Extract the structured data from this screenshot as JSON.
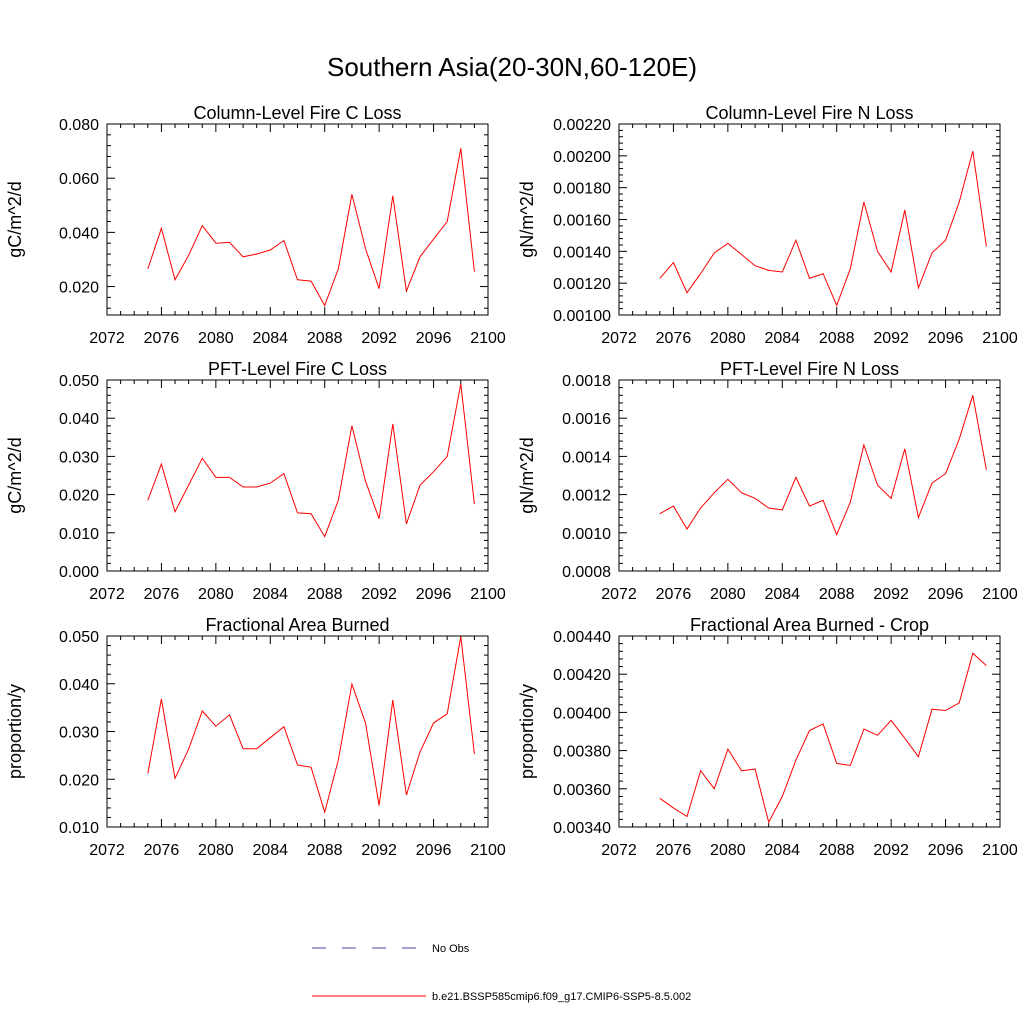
{
  "figure": {
    "title": "Southern Asia(20-30N,60-120E)"
  },
  "legend": {
    "entries": [
      {
        "label": "No Obs",
        "color": "#4a4aa0",
        "dash": "dashed"
      },
      {
        "label": "b.e21.BSSP585cmip6.f09_g17.CMIP6-SSP5-8.5.002",
        "color": "#ff0000",
        "dash": "solid"
      }
    ]
  },
  "chart_data": [
    {
      "type": "line",
      "title": "Column-Level Fire C Loss",
      "ylabel": "gC/m^2/d",
      "xlim": [
        2072,
        2100
      ],
      "ylim": [
        0.0095,
        0.08
      ],
      "yticks": [
        0.02,
        0.04,
        0.06,
        0.08
      ],
      "ytick_labels": [
        "0.020",
        "0.040",
        "0.060",
        "0.080"
      ],
      "xticks": [
        2072,
        2076,
        2080,
        2084,
        2088,
        2092,
        2096,
        2100
      ],
      "series": [
        {
          "color": "#ff0000",
          "x": [
            2075,
            2076,
            2077,
            2078,
            2079,
            2080,
            2081,
            2082,
            2083,
            2084,
            2085,
            2086,
            2087,
            2088,
            2089,
            2090,
            2091,
            2092,
            2093,
            2094,
            2095,
            2096,
            2097,
            2098,
            2099
          ],
          "y": [
            0.0265,
            0.0415,
            0.0225,
            0.0315,
            0.0425,
            0.036,
            0.0363,
            0.031,
            0.032,
            0.0335,
            0.037,
            0.0225,
            0.022,
            0.013,
            0.0265,
            0.054,
            0.034,
            0.0192,
            0.0535,
            0.0183,
            0.031,
            0.0375,
            0.044,
            0.071,
            0.0255
          ]
        }
      ]
    },
    {
      "type": "line",
      "title": "Column-Level Fire N Loss",
      "ylabel": "gN/m^2/d",
      "xlim": [
        2072,
        2100
      ],
      "ylim": [
        0.001,
        0.0022
      ],
      "yticks": [
        0.001,
        0.0012,
        0.0014,
        0.0016,
        0.0018,
        0.002,
        0.0022
      ],
      "ytick_labels": [
        "0.00100",
        "0.00120",
        "0.00140",
        "0.00160",
        "0.00180",
        "0.00200",
        "0.00220"
      ],
      "xticks": [
        2072,
        2076,
        2080,
        2084,
        2088,
        2092,
        2096,
        2100
      ],
      "series": [
        {
          "color": "#ff0000",
          "x": [
            2075,
            2076,
            2077,
            2078,
            2079,
            2080,
            2081,
            2082,
            2083,
            2084,
            2085,
            2086,
            2087,
            2088,
            2089,
            2090,
            2091,
            2092,
            2093,
            2094,
            2095,
            2096,
            2097,
            2098,
            2099
          ],
          "y": [
            0.00123,
            0.00133,
            0.00114,
            0.00126,
            0.00139,
            0.00145,
            0.00138,
            0.00131,
            0.00128,
            0.00127,
            0.00147,
            0.00123,
            0.00126,
            0.00106,
            0.00129,
            0.00171,
            0.0014,
            0.00127,
            0.00166,
            0.00117,
            0.00139,
            0.00147,
            0.00171,
            0.00203,
            0.00143
          ]
        }
      ]
    },
    {
      "type": "line",
      "title": "PFT-Level Fire C Loss",
      "ylabel": "gC/m^2/d",
      "xlim": [
        2072,
        2100
      ],
      "ylim": [
        0.0,
        0.05
      ],
      "yticks": [
        0.0,
        0.01,
        0.02,
        0.03,
        0.04,
        0.05
      ],
      "ytick_labels": [
        "0.000",
        "0.010",
        "0.020",
        "0.030",
        "0.040",
        "0.050"
      ],
      "xticks": [
        2072,
        2076,
        2080,
        2084,
        2088,
        2092,
        2096,
        2100
      ],
      "series": [
        {
          "color": "#ff0000",
          "x": [
            2075,
            2076,
            2077,
            2078,
            2079,
            2080,
            2081,
            2082,
            2083,
            2084,
            2085,
            2086,
            2087,
            2088,
            2089,
            2090,
            2091,
            2092,
            2093,
            2094,
            2095,
            2096,
            2097,
            2098,
            2099
          ],
          "y": [
            0.0185,
            0.028,
            0.0155,
            0.0225,
            0.0295,
            0.0245,
            0.0245,
            0.022,
            0.022,
            0.023,
            0.0255,
            0.0152,
            0.015,
            0.009,
            0.0185,
            0.038,
            0.0235,
            0.0137,
            0.0385,
            0.0123,
            0.0225,
            0.026,
            0.03,
            0.049,
            0.0175
          ]
        }
      ]
    },
    {
      "type": "line",
      "title": "PFT-Level Fire N Loss",
      "ylabel": "gN/m^2/d",
      "xlim": [
        2072,
        2100
      ],
      "ylim": [
        0.0008,
        0.0018
      ],
      "yticks": [
        0.0008,
        0.001,
        0.0012,
        0.0014,
        0.0016,
        0.0018
      ],
      "ytick_labels": [
        "0.0008",
        "0.0010",
        "0.0012",
        "0.0014",
        "0.0016",
        "0.0018"
      ],
      "xticks": [
        2072,
        2076,
        2080,
        2084,
        2088,
        2092,
        2096,
        2100
      ],
      "series": [
        {
          "color": "#ff0000",
          "x": [
            2075,
            2076,
            2077,
            2078,
            2079,
            2080,
            2081,
            2082,
            2083,
            2084,
            2085,
            2086,
            2087,
            2088,
            2089,
            2090,
            2091,
            2092,
            2093,
            2094,
            2095,
            2096,
            2097,
            2098,
            2099
          ],
          "y": [
            0.0011,
            0.00114,
            0.00102,
            0.00113,
            0.00121,
            0.00128,
            0.00121,
            0.00118,
            0.00113,
            0.00112,
            0.00129,
            0.00114,
            0.00117,
            0.00099,
            0.00116,
            0.00146,
            0.00125,
            0.00118,
            0.00144,
            0.00108,
            0.00126,
            0.00131,
            0.00149,
            0.00172,
            0.00133
          ]
        }
      ]
    },
    {
      "type": "line",
      "title": "Fractional Area Burned",
      "ylabel": "proportion/y",
      "xlim": [
        2072,
        2100
      ],
      "ylim": [
        0.01,
        0.05
      ],
      "yticks": [
        0.01,
        0.02,
        0.03,
        0.04,
        0.05
      ],
      "ytick_labels": [
        "0.010",
        "0.020",
        "0.030",
        "0.040",
        "0.050"
      ],
      "xticks": [
        2072,
        2076,
        2080,
        2084,
        2088,
        2092,
        2096,
        2100
      ],
      "series": [
        {
          "color": "#ff0000",
          "x": [
            2075,
            2076,
            2077,
            2078,
            2079,
            2080,
            2081,
            2082,
            2083,
            2084,
            2085,
            2086,
            2087,
            2088,
            2089,
            2090,
            2091,
            2092,
            2093,
            2094,
            2095,
            2096,
            2097,
            2098,
            2099
          ],
          "y": [
            0.0212,
            0.0368,
            0.0202,
            0.0263,
            0.0343,
            0.0311,
            0.0335,
            0.0264,
            0.0264,
            0.0287,
            0.031,
            0.023,
            0.0225,
            0.0131,
            0.024,
            0.0399,
            0.0318,
            0.0145,
            0.0366,
            0.0167,
            0.0257,
            0.0318,
            0.0337,
            0.0499,
            0.0253
          ]
        }
      ]
    },
    {
      "type": "line",
      "title": "Fractional Area Burned - Crop",
      "ylabel": "proportion/y",
      "xlim": [
        2072,
        2100
      ],
      "ylim": [
        0.0034,
        0.0044
      ],
      "yticks": [
        0.0034,
        0.0036,
        0.0038,
        0.004,
        0.0042,
        0.0044
      ],
      "ytick_labels": [
        "0.00340",
        "0.00360",
        "0.00380",
        "0.00400",
        "0.00420",
        "0.00440"
      ],
      "xticks": [
        2072,
        2076,
        2080,
        2084,
        2088,
        2092,
        2096,
        2100
      ],
      "series": [
        {
          "color": "#ff0000",
          "x": [
            2075,
            2076,
            2077,
            2078,
            2079,
            2080,
            2081,
            2082,
            2083,
            2084,
            2085,
            2086,
            2087,
            2088,
            2089,
            2090,
            2091,
            2092,
            2093,
            2094,
            2095,
            2096,
            2097,
            2098,
            2099
          ],
          "y": [
            0.00355,
            0.0035,
            0.003455,
            0.003695,
            0.0036,
            0.003808,
            0.003695,
            0.003703,
            0.003425,
            0.00356,
            0.00375,
            0.003905,
            0.00394,
            0.003733,
            0.003722,
            0.003913,
            0.00388,
            0.003958,
            0.003865,
            0.003768,
            0.004017,
            0.00401,
            0.00405,
            0.00431,
            0.004245
          ]
        }
      ]
    }
  ]
}
